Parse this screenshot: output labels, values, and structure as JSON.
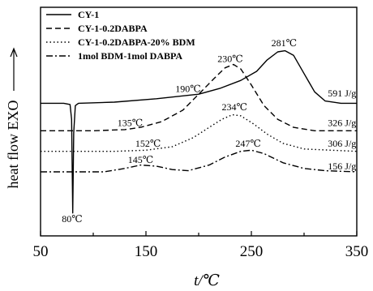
{
  "chart_data": {
    "type": "line",
    "xlabel": "t/℃",
    "ylabel": "heat flow EXO",
    "xlim": [
      50,
      350
    ],
    "xticks": [
      50,
      150,
      250,
      350
    ],
    "grid": false,
    "legend_position": "top-left",
    "series": [
      {
        "name": "CY-1",
        "style": "solid",
        "points": [
          [
            50,
            58
          ],
          [
            72,
            58
          ],
          [
            78,
            57.5
          ],
          [
            79.5,
            51
          ],
          [
            80.5,
            10
          ],
          [
            81.5,
            45
          ],
          [
            83,
            57
          ],
          [
            86,
            58
          ],
          [
            120,
            58.5
          ],
          [
            160,
            60
          ],
          [
            200,
            62
          ],
          [
            220,
            64.5
          ],
          [
            240,
            68
          ],
          [
            255,
            72
          ],
          [
            265,
            77
          ],
          [
            275,
            80.5
          ],
          [
            282,
            81
          ],
          [
            290,
            79
          ],
          [
            300,
            71
          ],
          [
            310,
            63
          ],
          [
            320,
            59
          ],
          [
            335,
            58
          ],
          [
            350,
            58
          ]
        ]
      },
      {
        "name": "CY-1-0.2DABPA",
        "style": "dashed",
        "points": [
          [
            50,
            46
          ],
          [
            100,
            46
          ],
          [
            130,
            46.5
          ],
          [
            145,
            47.5
          ],
          [
            165,
            50
          ],
          [
            185,
            55
          ],
          [
            200,
            62
          ],
          [
            215,
            69
          ],
          [
            225,
            73.5
          ],
          [
            233,
            75
          ],
          [
            240,
            73
          ],
          [
            250,
            66
          ],
          [
            262,
            57
          ],
          [
            275,
            51
          ],
          [
            290,
            47.5
          ],
          [
            310,
            46
          ],
          [
            350,
            46
          ]
        ]
      },
      {
        "name": "CY-1-0.2DABPA-20% BDM",
        "style": "dotted",
        "points": [
          [
            50,
            37
          ],
          [
            120,
            37
          ],
          [
            150,
            37.5
          ],
          [
            175,
            39
          ],
          [
            195,
            43
          ],
          [
            210,
            47.5
          ],
          [
            222,
            51
          ],
          [
            232,
            53
          ],
          [
            240,
            52.5
          ],
          [
            252,
            49
          ],
          [
            265,
            44.5
          ],
          [
            280,
            40.5
          ],
          [
            300,
            38
          ],
          [
            350,
            37
          ]
        ]
      },
      {
        "name": "1mol BDM-1mol DABPA",
        "style": "dashdot",
        "points": [
          [
            50,
            28
          ],
          [
            110,
            28
          ],
          [
            130,
            29.5
          ],
          [
            145,
            31
          ],
          [
            160,
            30.5
          ],
          [
            175,
            29
          ],
          [
            190,
            28.5
          ],
          [
            210,
            31
          ],
          [
            225,
            34.5
          ],
          [
            240,
            37
          ],
          [
            250,
            37.5
          ],
          [
            262,
            36
          ],
          [
            280,
            32
          ],
          [
            300,
            29.5
          ],
          [
            320,
            28.5
          ],
          [
            350,
            28
          ]
        ]
      }
    ],
    "annotations": [
      {
        "text": "281℃",
        "x": 281,
        "y": 83
      },
      {
        "text": "230℃",
        "x": 230,
        "y": 76
      },
      {
        "text": "190℃",
        "x": 190,
        "y": 63
      },
      {
        "text": "591 J/g",
        "x": 336,
        "y": 61
      },
      {
        "text": "135℃",
        "x": 135,
        "y": 48
      },
      {
        "text": "326 J/g",
        "x": 336,
        "y": 48
      },
      {
        "text": "234℃",
        "x": 234,
        "y": 55
      },
      {
        "text": "152℃",
        "x": 152,
        "y": 39
      },
      {
        "text": "306 J/g",
        "x": 336,
        "y": 39
      },
      {
        "text": "145℃",
        "x": 145,
        "y": 32
      },
      {
        "text": "247℃",
        "x": 247,
        "y": 39
      },
      {
        "text": "156 J/g",
        "x": 336,
        "y": 29
      },
      {
        "text": "80℃",
        "x": 80,
        "y": 6
      }
    ]
  }
}
